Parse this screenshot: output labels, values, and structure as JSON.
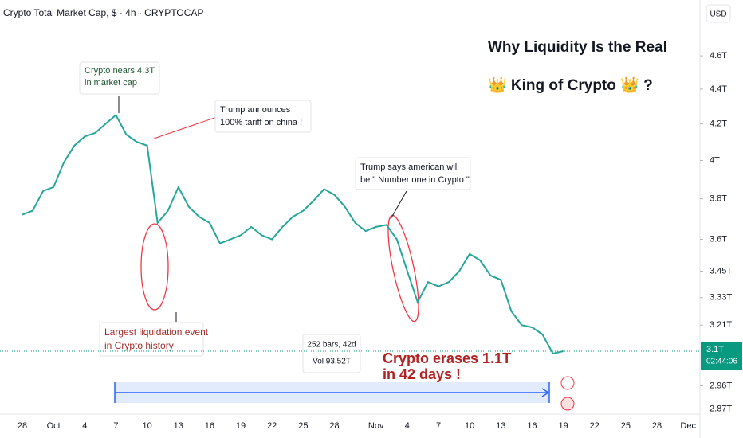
{
  "header": {
    "symbol": "Crypto Total Market Cap, $ · 4h · CRYPTOCAP",
    "currency": "USD"
  },
  "chart_data": {
    "type": "line",
    "log_scale": true,
    "color": "#26a69a",
    "title": [
      "Why Liquidity Is the Real",
      "👑 King of Crypto 👑 ?"
    ],
    "categories": [
      "28",
      null,
      null,
      "Oct",
      null,
      null,
      "4",
      null,
      null,
      "7",
      null,
      null,
      "10",
      null,
      null,
      "13",
      null,
      null,
      "16",
      null,
      null,
      "19",
      null,
      null,
      "22",
      null,
      null,
      "25",
      null,
      null,
      "28",
      null,
      null,
      null,
      "Nov",
      null,
      null,
      "4",
      null,
      null,
      "7",
      null,
      null,
      "10",
      null,
      null,
      "13",
      null,
      null,
      "16",
      null,
      null,
      "19",
      null,
      null,
      "22",
      null,
      null,
      "25",
      null,
      null,
      "28",
      null,
      null,
      "Dec"
    ],
    "values": [
      3.72,
      3.74,
      3.84,
      3.86,
      3.99,
      4.08,
      4.13,
      4.15,
      4.2,
      4.25,
      4.14,
      4.1,
      4.08,
      3.68,
      3.74,
      3.86,
      3.76,
      3.71,
      3.68,
      3.58,
      3.6,
      3.62,
      3.66,
      3.62,
      3.6,
      3.66,
      3.71,
      3.74,
      3.79,
      3.85,
      3.82,
      3.76,
      3.68,
      3.64,
      3.66,
      3.67,
      3.6,
      3.45,
      3.31,
      3.4,
      3.38,
      3.4,
      3.45,
      3.53,
      3.5,
      3.43,
      3.41,
      3.27,
      3.21,
      3.2,
      3.17,
      3.09,
      3.1,
      null,
      null,
      null,
      null,
      null,
      null,
      null,
      null,
      null,
      null,
      null,
      null
    ],
    "ylim": [
      2.85,
      4.93
    ],
    "yticks": [
      {
        "value": 4.6,
        "label": "4.6T"
      },
      {
        "value": 4.4,
        "label": "4.4T"
      },
      {
        "value": 4.2,
        "label": "4.2T"
      },
      {
        "value": 4,
        "label": "4T"
      },
      {
        "value": 3.8,
        "label": "3.8T"
      },
      {
        "value": 3.6,
        "label": "3.6T"
      },
      {
        "value": 3.45,
        "label": "3.45T"
      },
      {
        "value": 3.33,
        "label": "3.33T"
      },
      {
        "value": 3.21,
        "label": "3.21T"
      },
      {
        "value": 2.96,
        "label": "2.96T"
      },
      {
        "value": 2.87,
        "label": "2.87T"
      }
    ],
    "current_price": {
      "value": 3.1,
      "label": "3.1T"
    },
    "countdown": "02:44:06",
    "annotations": [
      {
        "lines": [
          "Crypto nears 4.3T",
          "in market cap"
        ]
      },
      {
        "lines": [
          "Trump announces",
          "100% tariff on china !"
        ]
      },
      {
        "lines": [
          "Trump says american will",
          "be \" Number one in Crypto \""
        ]
      },
      {
        "lines": [
          "Largest liquidation event",
          "in Crypto history"
        ]
      },
      {
        "lines": [
          "Crypto erases 1.1T",
          "in 42 days !"
        ]
      }
    ],
    "measure": {
      "bars": "252 bars, 42d",
      "volume": "Vol 93.52T"
    }
  }
}
